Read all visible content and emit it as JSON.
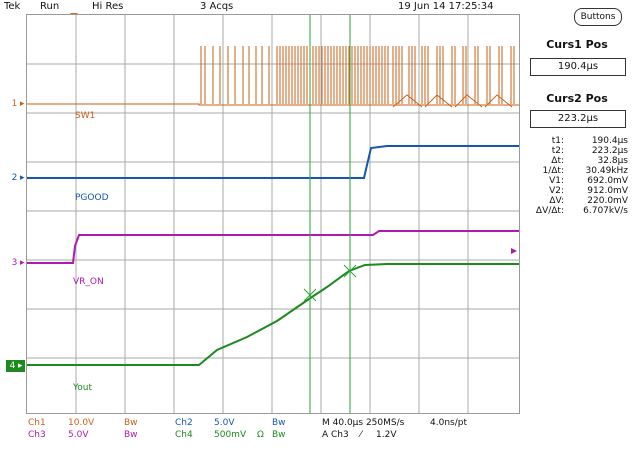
{
  "topbar": {
    "brand": "Tek",
    "state": "Run",
    "mode": "Hi Res",
    "acqs": "3 Acqs",
    "datetime": "19 Jun 14 17:25:34"
  },
  "colors": {
    "ch1": "#c8621a",
    "ch2": "#1556b4",
    "ch3": "#b019b0",
    "ch4": "#1c8a1c",
    "cursor": "#2aa63a",
    "grid": "#9a9a9a"
  },
  "markers": {
    "ch1": "1",
    "ch2": "2",
    "ch3": "3",
    "ch4": "4"
  },
  "trace_labels": {
    "ch1": "SW1",
    "ch2": "PGOOD",
    "ch3": "VR_ON",
    "ch4": "Yout"
  },
  "panel": {
    "buttons_label": "Buttons",
    "curs1_title": "Curs1 Pos",
    "curs1_value": "190.4µs",
    "curs2_title": "Curs2 Pos",
    "curs2_value": "223.2µs",
    "readouts": [
      {
        "label": "t1:",
        "value": "190.4µs"
      },
      {
        "label": "t2:",
        "value": "223.2µs"
      },
      {
        "label": "Δt:",
        "value": "32.8µs"
      },
      {
        "label": "1/Δt:",
        "value": "30.49kHz"
      },
      {
        "label": "V1:",
        "value": "692.0mV"
      },
      {
        "label": "V2:",
        "value": "912.0mV"
      },
      {
        "label": "ΔV:",
        "value": "220.0mV"
      },
      {
        "label": "ΔV/Δt:",
        "value": "6.707kV/s"
      }
    ]
  },
  "bottom": {
    "ch1": "Ch1",
    "ch1_scale": "10.0V",
    "ch1_bw": "Bw",
    "ch2": "Ch2",
    "ch2_scale": "5.0V",
    "ch2_bw": "Bw",
    "ch3": "Ch3",
    "ch3_scale": "5.0V",
    "ch3_bw": "Bw",
    "ch4": "Ch4",
    "ch4_scale": "500mV",
    "ch4_ohm": "Ω",
    "ch4_bw": "Bw",
    "timebase": "M 40.0µs 250MS/s",
    "resolution": "4.0ns/pt",
    "trigger_src": "A Ch3",
    "trigger_slope": "⁄",
    "trigger_level": "1.2V"
  }
}
